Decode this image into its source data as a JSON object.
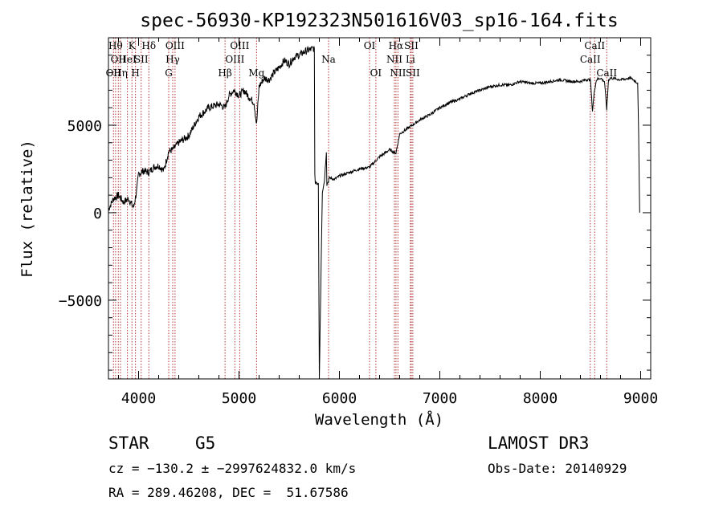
{
  "chart_data": {
    "type": "line",
    "title": "spec-56930-KP192323N501616V03_sp16-164.fits",
    "xlabel": "Wavelength (Å)",
    "ylabel": "Flux (relative)",
    "xlim": [
      3700,
      9100
    ],
    "ylim": [
      -9500,
      10000
    ],
    "xticks": [
      4000,
      5000,
      6000,
      7000,
      8000,
      9000
    ],
    "xtick_labels": [
      "4000",
      "5000",
      "6000",
      "7000",
      "8000",
      "9000"
    ],
    "yticks": [
      -5000,
      0,
      5000
    ],
    "ytick_labels": [
      "−5000",
      "0",
      "5000"
    ],
    "grid": false,
    "series": [
      {
        "name": "spectrum",
        "x": [
          3700,
          3750,
          3800,
          3850,
          3900,
          3950,
          3980,
          4000,
          4050,
          4100,
          4150,
          4200,
          4250,
          4300,
          4340,
          4400,
          4500,
          4600,
          4700,
          4800,
          4861,
          4900,
          4950,
          5000,
          5050,
          5100,
          5150,
          5175,
          5200,
          5250,
          5300,
          5350,
          5400,
          5450,
          5500,
          5550,
          5600,
          5650,
          5700,
          5750,
          5755,
          5760,
          5790,
          5800,
          5830,
          5850,
          5870,
          5875,
          5890,
          5900,
          5950,
          6000,
          6100,
          6200,
          6300,
          6400,
          6500,
          6563,
          6600,
          6700,
          6800,
          6900,
          7000,
          7100,
          7200,
          7300,
          7400,
          7500,
          7600,
          7700,
          7800,
          7900,
          8000,
          8100,
          8200,
          8300,
          8400,
          8450,
          8500,
          8520,
          8540,
          8560,
          8600,
          8640,
          8662,
          8680,
          8700,
          8800,
          8900,
          8950,
          8970,
          8980,
          8990
        ],
        "y": [
          200,
          800,
          1000,
          600,
          800,
          300,
          1200,
          2200,
          2400,
          2300,
          2600,
          2700,
          2400,
          3500,
          3600,
          4000,
          4400,
          5500,
          6000,
          6200,
          6000,
          6700,
          7000,
          6700,
          7000,
          6600,
          6300,
          5000,
          7200,
          7700,
          7600,
          8000,
          8300,
          8700,
          8500,
          8900,
          9000,
          9200,
          9300,
          9400,
          2000,
          1800,
          1700,
          -9500,
          1200,
          1800,
          3500,
          1600,
          1800,
          2000,
          1900,
          2100,
          2300,
          2500,
          2600,
          3200,
          3600,
          3400,
          4500,
          4900,
          5300,
          5600,
          6000,
          6300,
          6500,
          6800,
          7000,
          7200,
          7300,
          7300,
          7500,
          7400,
          7400,
          7500,
          7600,
          7500,
          7500,
          7600,
          7600,
          5800,
          7000,
          7600,
          7700,
          7500,
          5900,
          7600,
          7700,
          7600,
          7700,
          7500,
          7400,
          4500,
          0
        ]
      }
    ],
    "line_markers": [
      {
        "wl": 3750,
        "label": "OII",
        "row": 2
      },
      {
        "wl": 3771,
        "label": "Hθ",
        "row": 0
      },
      {
        "wl": 3798,
        "label": "OII",
        "row": 1
      },
      {
        "wl": 3820,
        "label": "Hη",
        "row": 2
      },
      {
        "wl": 3889,
        "label": "HeI",
        "row": 1
      },
      {
        "wl": 3934,
        "label": "K",
        "row": 0
      },
      {
        "wl": 3969,
        "label": "H",
        "row": 2
      },
      {
        "wl": 4026,
        "label": "SII",
        "row": 1
      },
      {
        "wl": 4102,
        "label": "Hδ",
        "row": 0
      },
      {
        "wl": 4300,
        "label": "G",
        "row": 2
      },
      {
        "wl": 4340,
        "label": "Hγ",
        "row": 1
      },
      {
        "wl": 4363,
        "label": "OIII",
        "row": 0
      },
      {
        "wl": 4861,
        "label": "Hβ",
        "row": 2
      },
      {
        "wl": 4959,
        "label": "OIII",
        "row": 1
      },
      {
        "wl": 5007,
        "label": "OIII",
        "row": 0
      },
      {
        "wl": 5175,
        "label": "Mg",
        "row": 2
      },
      {
        "wl": 5892,
        "label": "Na",
        "row": 1
      },
      {
        "wl": 6300,
        "label": "OI",
        "row": 0
      },
      {
        "wl": 6363,
        "label": "OI",
        "row": 2
      },
      {
        "wl": 6548,
        "label": "NII",
        "row": 1
      },
      {
        "wl": 6563,
        "label": "Hα",
        "row": 0
      },
      {
        "wl": 6583,
        "label": "NII",
        "row": 2
      },
      {
        "wl": 6707,
        "label": "Li",
        "row": 1
      },
      {
        "wl": 6716,
        "label": "SII",
        "row": 0
      },
      {
        "wl": 6731,
        "label": "SII",
        "row": 2
      },
      {
        "wl": 8498,
        "label": "CaII",
        "row": 1
      },
      {
        "wl": 8542,
        "label": "CaII",
        "row": 0
      },
      {
        "wl": 8662,
        "label": "CaII",
        "row": 2
      }
    ]
  },
  "info": {
    "class_label": "STAR",
    "subclass_label": "G5",
    "survey": "LAMOST DR3",
    "cz_line": "cz = −130.2 ± −2997624832.0 km/s",
    "obs_date": "Obs-Date: 20140929",
    "radec_line": "RA = 289.46208, DEC =  51.67586"
  },
  "colors": {
    "marker": "#b03030",
    "line": "#000000"
  }
}
